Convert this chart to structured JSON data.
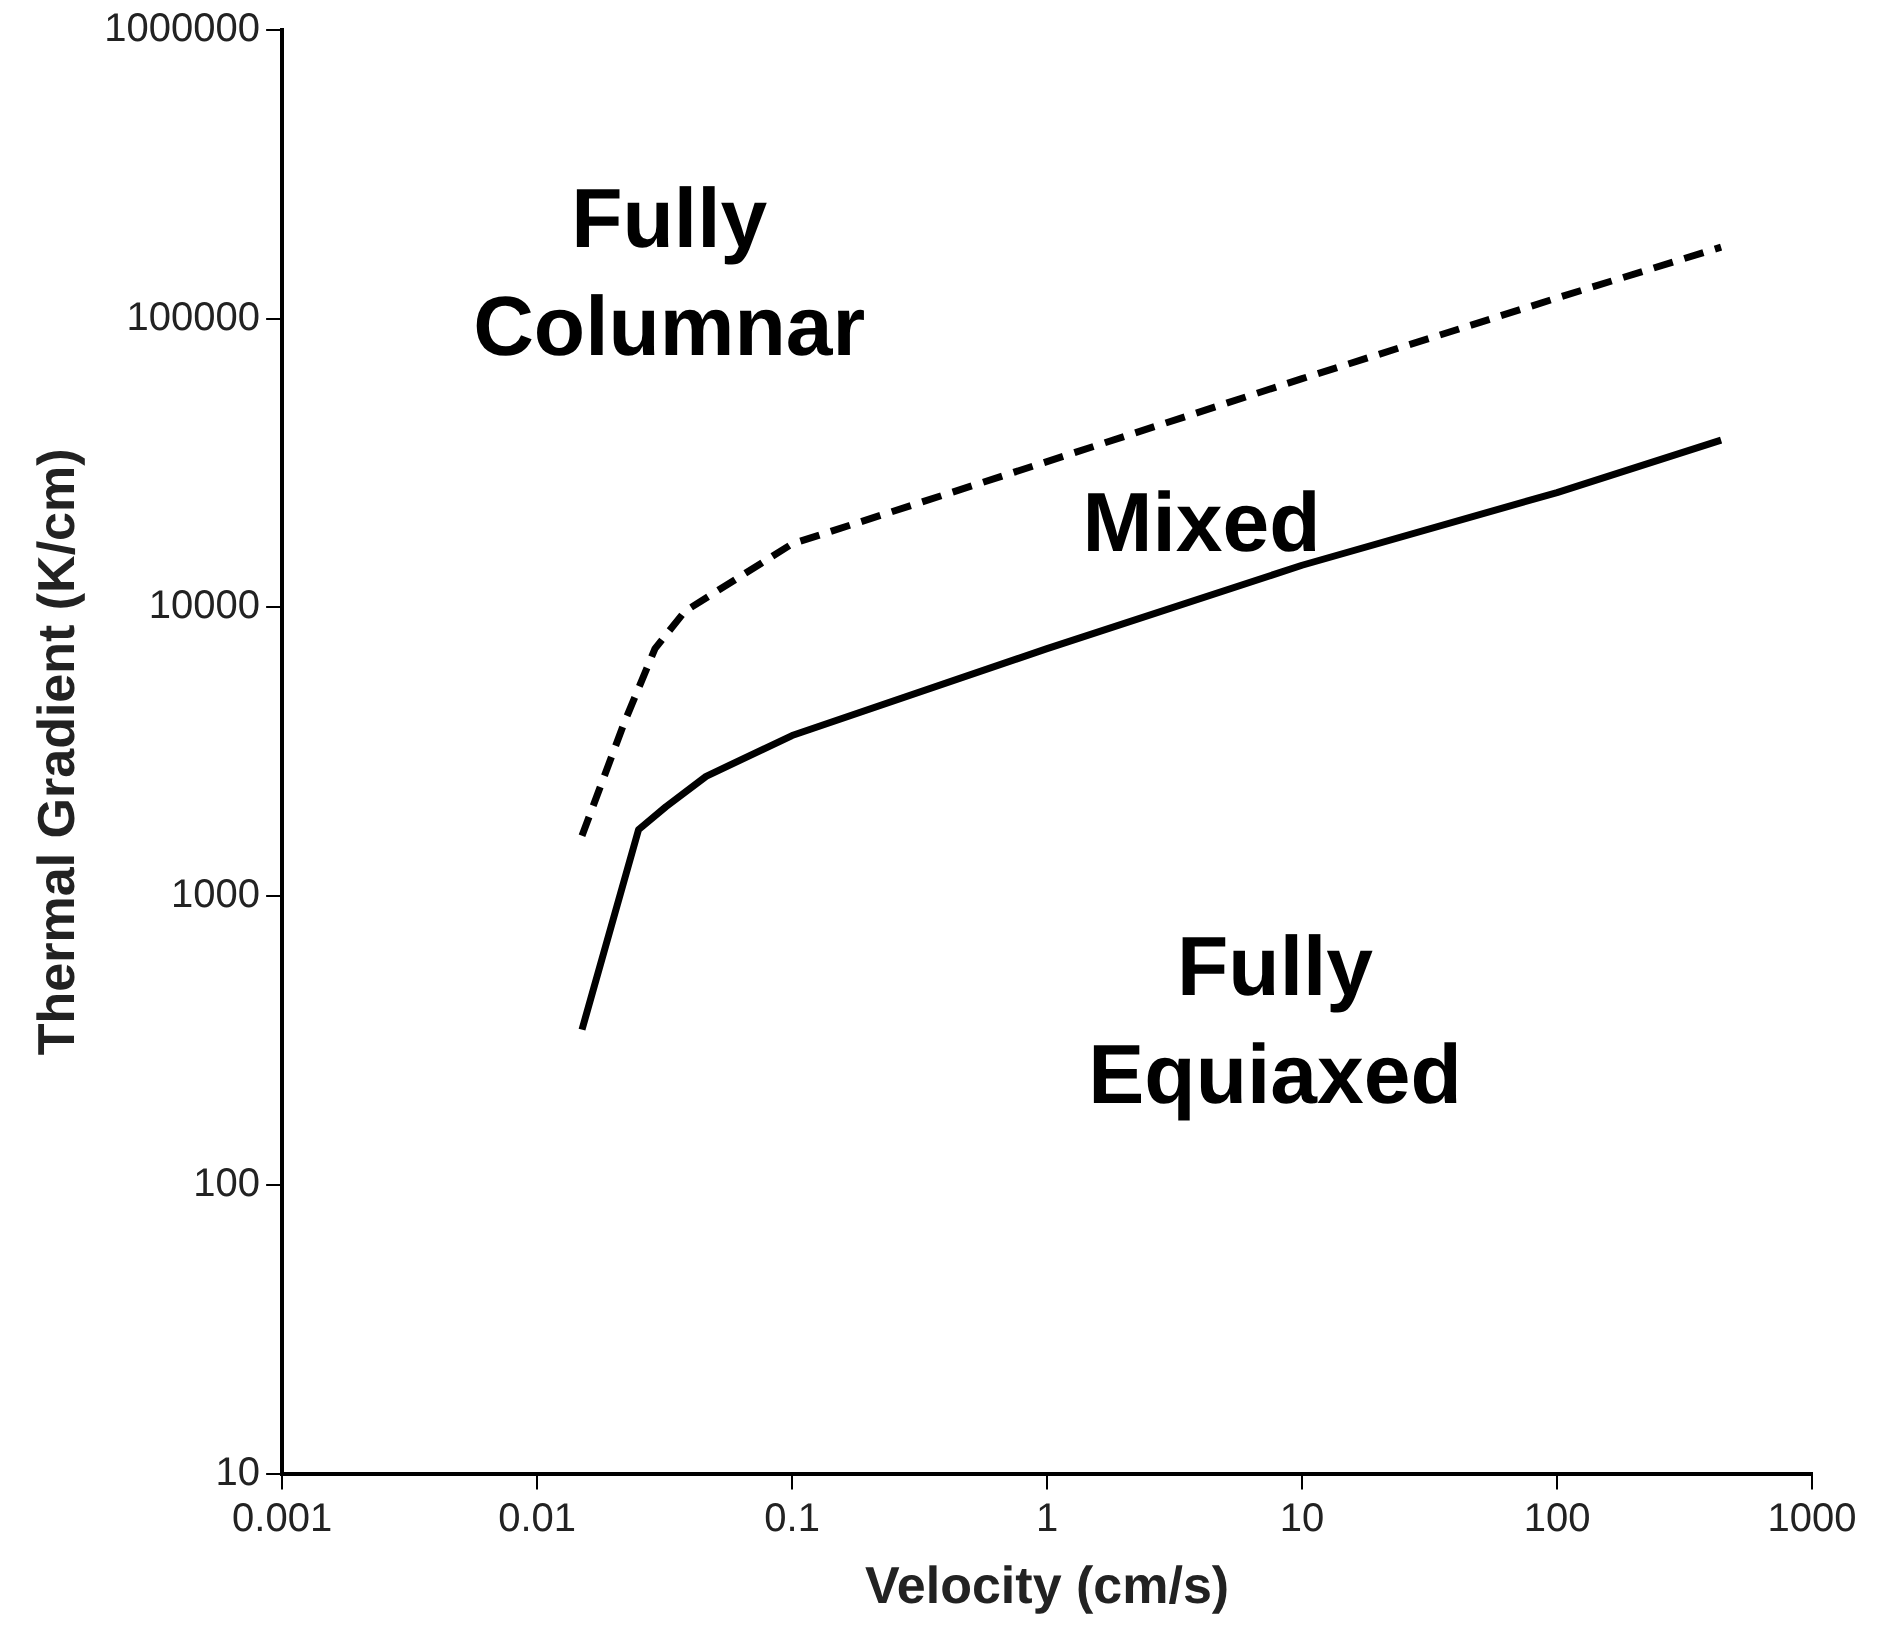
{
  "chart_data": {
    "type": "line",
    "xlabel": "Velocity (cm/s)",
    "ylabel": "Thermal Gradient (K/cm)",
    "log": "xy",
    "grid": false,
    "legend": false,
    "marker": "none",
    "xlim": [
      0.001,
      1000
    ],
    "xticks": [
      0.001,
      0.01,
      0.1,
      1,
      10,
      100,
      1000
    ],
    "ylim": [
      10,
      1000000
    ],
    "yticks": [
      10,
      100,
      1000,
      10000,
      100000,
      1000000
    ],
    "series": [
      {
        "color": "#000000",
        "line_style": "dashed",
        "x": [
          0.015,
          0.022,
          0.029,
          0.038,
          0.1,
          1,
          10,
          100,
          440
        ],
        "values": [
          1620,
          4000,
          7200,
          9700,
          16600,
          32000,
          62000,
          118000,
          177000
        ]
      },
      {
        "color": "#000000",
        "line_style": "solid",
        "x": [
          0.015,
          0.025,
          0.032,
          0.046,
          0.1,
          1,
          10,
          100,
          440
        ],
        "values": [
          345,
          1700,
          2040,
          2600,
          3600,
          7200,
          14000,
          25000,
          38000
        ]
      }
    ],
    "annotations": [
      "Fully\nColumnar",
      "Mixed",
      "Fully\nEquiaxed"
    ]
  }
}
